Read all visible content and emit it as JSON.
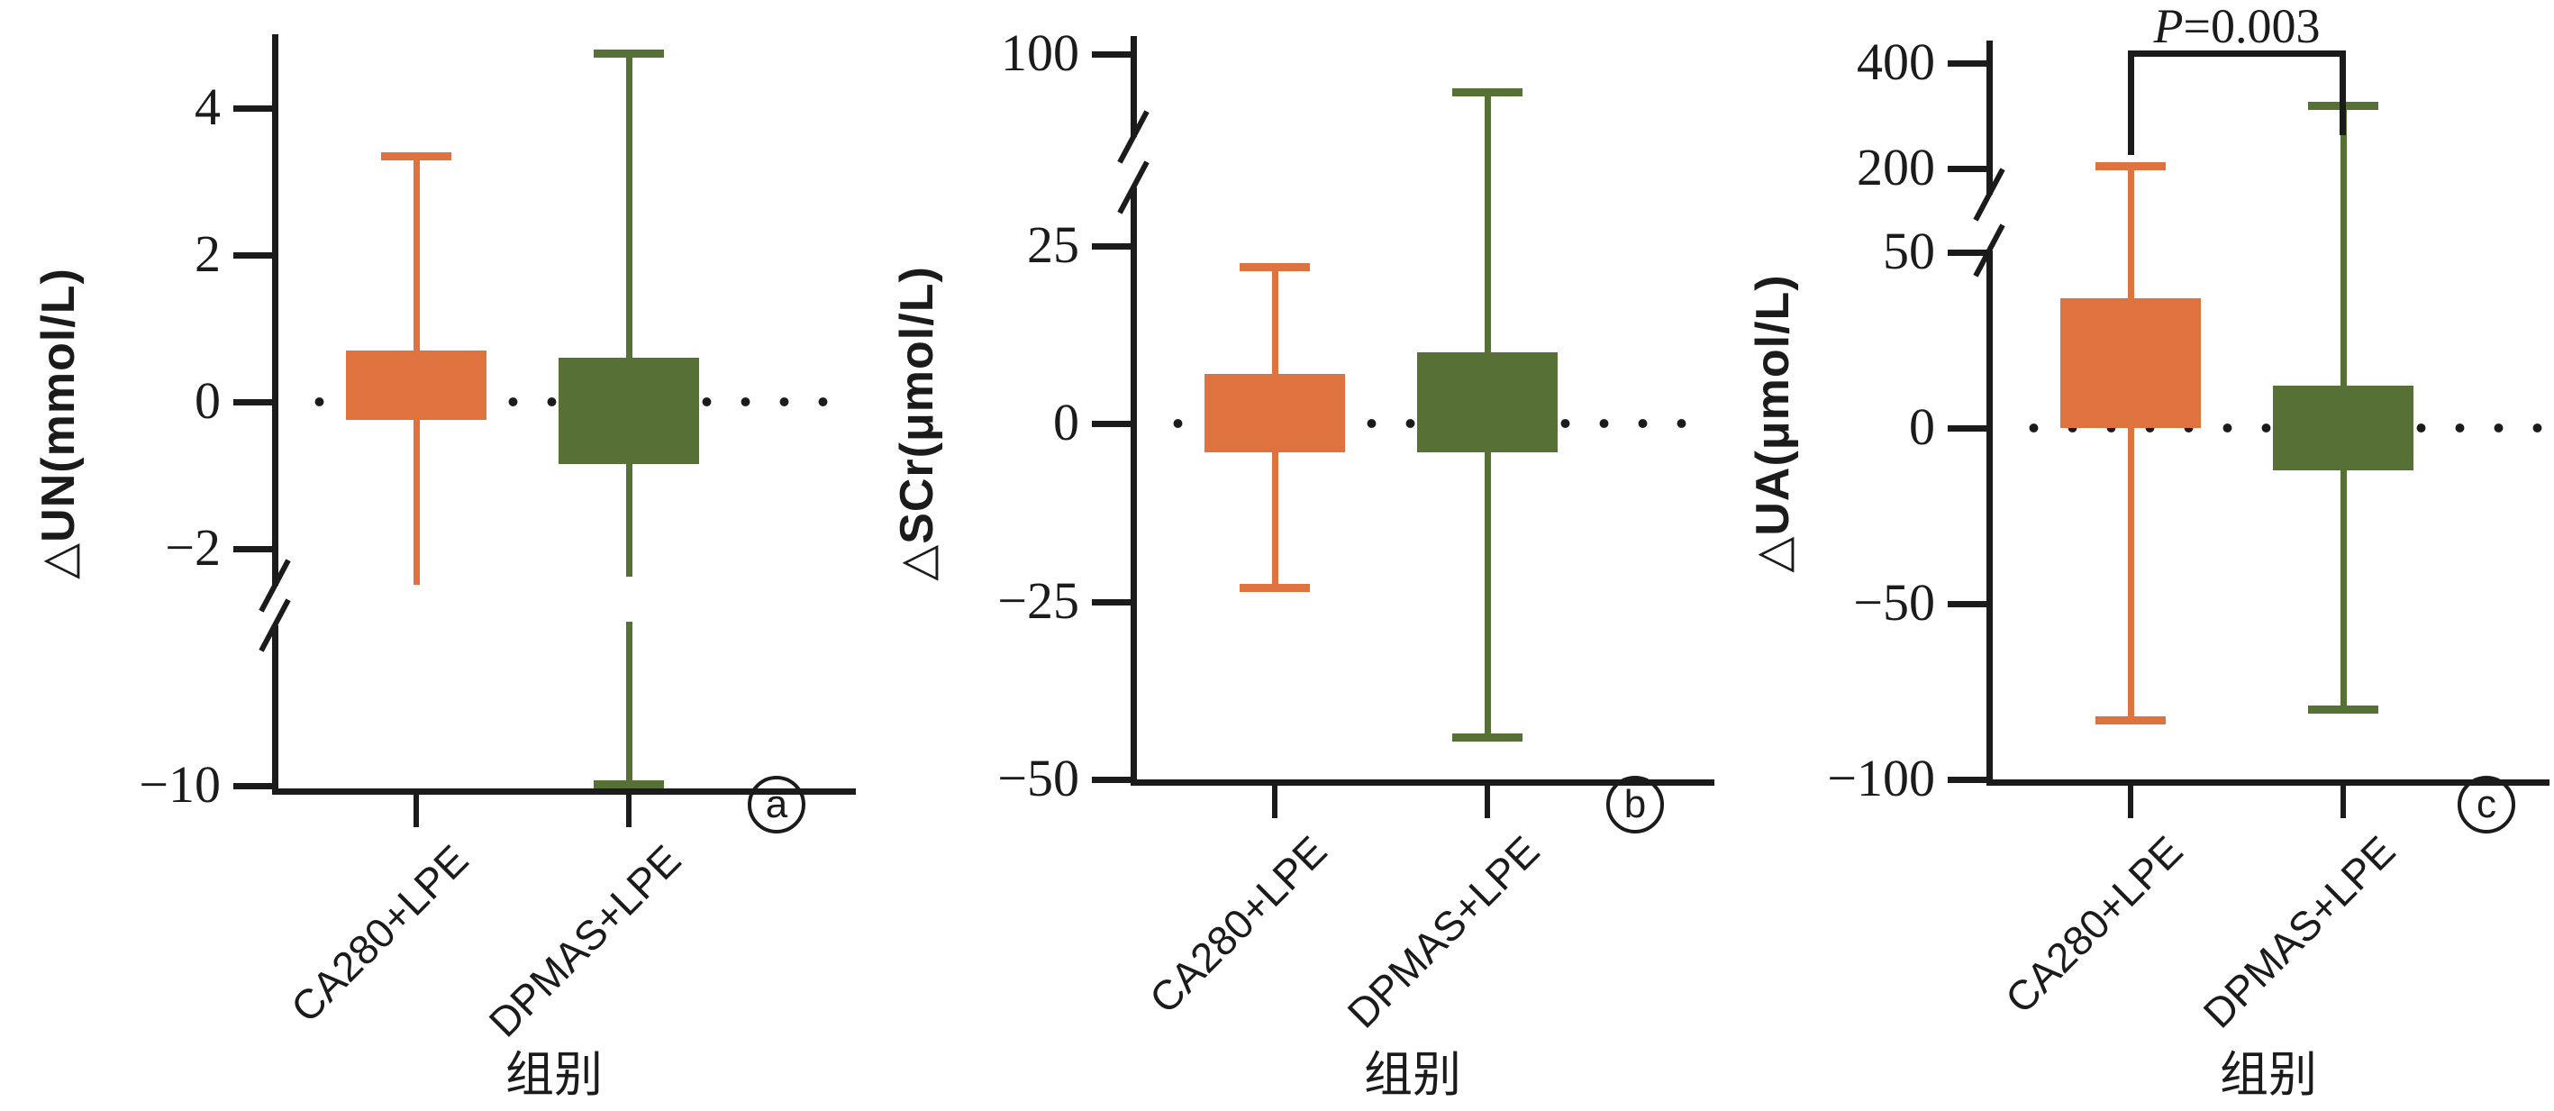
{
  "figure_type": "three-panel-boxplot-figure",
  "colors": {
    "group1": "#DE7340",
    "group2": "#567036",
    "axis": "#1B1B1B",
    "background": "#FFFFFF"
  },
  "chart_data": [
    {
      "type": "box",
      "panel_label": "a",
      "ylabel": "△UN(mmol/L)",
      "xlabel": "组别",
      "categories": [
        "CA280+LPE",
        "DPMAS+LPE"
      ],
      "ytick_values": [
        4,
        2,
        0,
        -2,
        -10
      ],
      "ytick_labels": [
        "4",
        "2",
        "0",
        "−2",
        "−10"
      ],
      "axis_break": {
        "between_values": [
          -2.5,
          -10
        ]
      },
      "zero_line_dotted": true,
      "legend": "none",
      "series": [
        {
          "name": "CA280+LPE",
          "color": "#DE7340",
          "whisker_low": -2.5,
          "q1": -0.25,
          "q3": 0.7,
          "whisker_high": 3.35,
          "whisker_low_clipped_at_break": true
        },
        {
          "name": "DPMAS+LPE",
          "color": "#567036",
          "whisker_low": -9.9,
          "q1": -0.85,
          "q3": 0.6,
          "whisker_high": 4.75,
          "whisker_crosses_break": true
        }
      ]
    },
    {
      "type": "box",
      "panel_label": "b",
      "ylabel": "△SCr(μmol/L)",
      "xlabel": "组别",
      "categories": [
        "CA280+LPE",
        "DPMAS+LPE"
      ],
      "ytick_values": [
        100,
        25,
        0,
        -25,
        -50
      ],
      "ytick_labels": [
        "100",
        "25",
        "0",
        "−25",
        "−50"
      ],
      "axis_break": {
        "between_values": [
          25,
          100
        ]
      },
      "zero_line_dotted": true,
      "legend": "none",
      "series": [
        {
          "name": "CA280+LPE",
          "color": "#DE7340",
          "whisker_low": -23,
          "q1": -4,
          "q3": 7,
          "whisker_high": 22
        },
        {
          "name": "DPMAS+LPE",
          "color": "#567036",
          "whisker_low": -44,
          "q1": -4,
          "q3": 10,
          "whisker_high": 85
        }
      ]
    },
    {
      "type": "box",
      "panel_label": "c",
      "ylabel": "△UA(μmol/L)",
      "xlabel": "组别",
      "categories": [
        "CA280+LPE",
        "DPMAS+LPE"
      ],
      "ytick_values": [
        400,
        200,
        50,
        0,
        -50,
        -100
      ],
      "ytick_labels": [
        "400",
        "200",
        "50",
        "0",
        "−50",
        "−100"
      ],
      "axis_break": {
        "between_values": [
          50,
          200
        ]
      },
      "zero_line_dotted": true,
      "legend": "none",
      "significance": {
        "label_italic": "P",
        "label_rest": "=0.003",
        "between": [
          "CA280+LPE",
          "DPMAS+LPE"
        ]
      },
      "series": [
        {
          "name": "CA280+LPE",
          "color": "#DE7340",
          "whisker_low": -83,
          "q1": 0,
          "q3": 37,
          "whisker_high": 205
        },
        {
          "name": "DPMAS+LPE",
          "color": "#567036",
          "whisker_low": -80,
          "q1": -12,
          "q3": 12,
          "whisker_high": 320
        }
      ]
    }
  ]
}
